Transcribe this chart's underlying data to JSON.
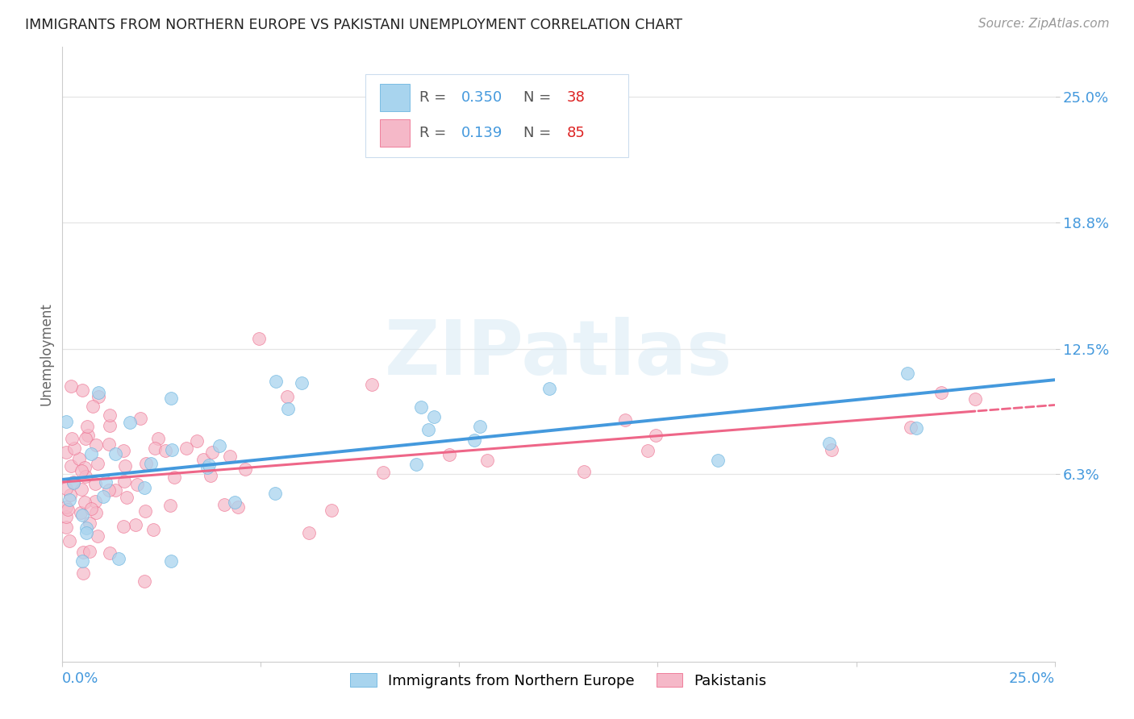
{
  "title": "IMMIGRANTS FROM NORTHERN EUROPE VS PAKISTANI UNEMPLOYMENT CORRELATION CHART",
  "source": "Source: ZipAtlas.com",
  "ylabel": "Unemployment",
  "ytick_vals": [
    0.063,
    0.125,
    0.188,
    0.25
  ],
  "ytick_labels": [
    "6.3%",
    "12.5%",
    "18.8%",
    "25.0%"
  ],
  "xlim": [
    0.0,
    0.25
  ],
  "ylim": [
    -0.03,
    0.275
  ],
  "blue_R": "0.350",
  "blue_N": "38",
  "pink_R": "0.139",
  "pink_N": "85",
  "blue_scatter_color": "#A8D4EE",
  "blue_scatter_edge": "#6BB5E0",
  "pink_scatter_color": "#F5B8C8",
  "pink_scatter_edge": "#EE7090",
  "blue_line_color": "#4499DD",
  "pink_line_color": "#EE6688",
  "watermark_color": "#DDEEFF",
  "watermark_text": "ZIPatlas",
  "legend_box_color": "#F0F8FF",
  "legend_box_edge": "#CCDDEE",
  "blue_seed": 42,
  "pink_seed": 77,
  "grid_color": "#E5E5E5",
  "spine_color": "#CCCCCC",
  "ytick_color": "#4499DD",
  "xlabel_color": "#4499DD"
}
